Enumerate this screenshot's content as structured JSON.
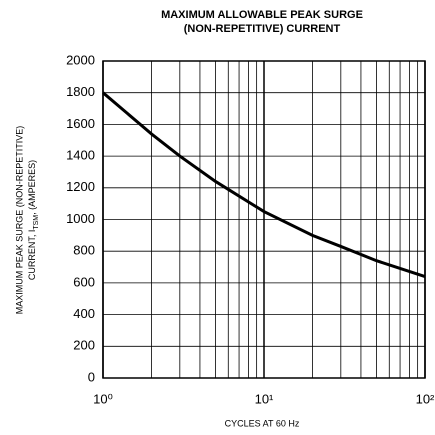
{
  "chart_data": {
    "type": "line",
    "log_x": true,
    "grid": true,
    "title": [
      "MAXIMUM ALLOWABLE PEAK SURGE",
      "(NON-REPETITIVE) CURRENT"
    ],
    "xlabel": "CYCLES AT 60 Hz",
    "ylabel": {
      "line1": "MAXIMUM PEAK SURGE (NON-REPETITIVE)",
      "line2": [
        "CURRENT, I",
        "TSM",
        ", (AMPERES)"
      ]
    },
    "xlim": [
      1,
      100
    ],
    "xticks": [
      {
        "value": 1,
        "label": "10⁰"
      },
      {
        "value": 10,
        "label": "10¹"
      },
      {
        "value": 100,
        "label": "10²"
      }
    ],
    "xminor": [
      2,
      3,
      4,
      5,
      6,
      7,
      8,
      9,
      20,
      30,
      40,
      50,
      60,
      70,
      80,
      90
    ],
    "ylim": [
      0,
      2000
    ],
    "yticks": [
      0,
      200,
      400,
      600,
      800,
      1000,
      1200,
      1400,
      1600,
      1800,
      2000
    ],
    "series": [
      {
        "color": "#000000",
        "x": [
          1,
          2,
          3,
          5,
          10,
          20,
          30,
          50,
          100
        ],
        "values": [
          1800,
          1540,
          1400,
          1240,
          1050,
          900,
          830,
          740,
          640
        ]
      }
    ]
  }
}
